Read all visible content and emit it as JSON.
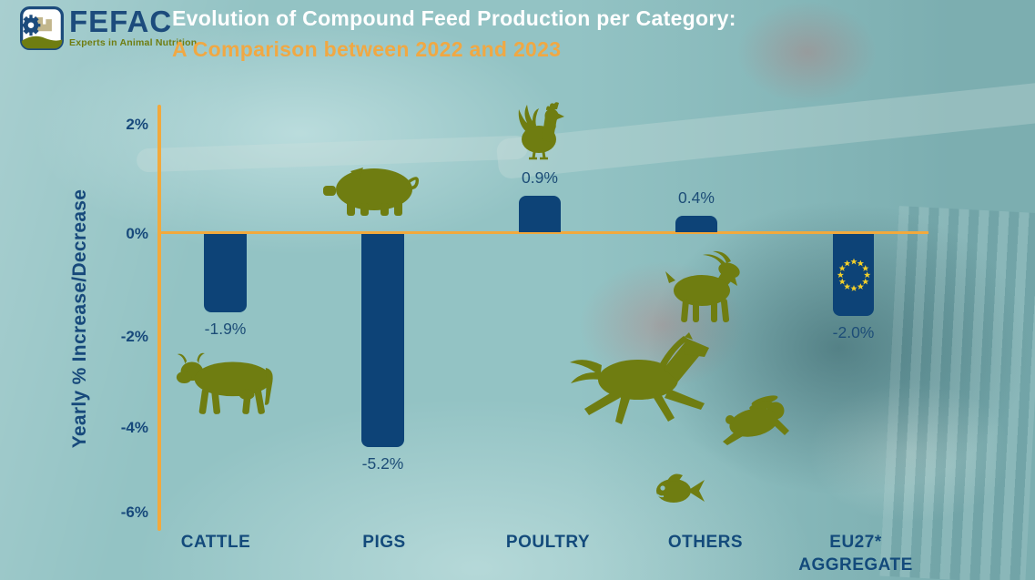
{
  "logo": {
    "brand": "FEFAC",
    "tagline": "Experts in Animal Nutrition"
  },
  "header": {
    "title_line1": "Evolution of Compound Feed Production per Category:",
    "title_line2": "A Comparison between 2022 and 2023"
  },
  "chart_data": {
    "type": "bar",
    "title": "Evolution of Compound Feed Production per Category: A Comparison between 2022 and 2023",
    "ylabel": "Yearly % Increase/Decrease",
    "categories": [
      "CATTLE",
      "PIGS",
      "POULTRY",
      "OTHERS",
      "EU27* AGGREGATE"
    ],
    "category_display": [
      "CATTLE",
      "PIGS",
      "POULTRY",
      "OTHERS",
      "EU27*\nAGGREGATE"
    ],
    "values": [
      -1.9,
      -5.2,
      0.9,
      0.4,
      -2.0
    ],
    "value_labels": [
      "-1.9%",
      "-5.2%",
      "0.9%",
      "0.4%",
      "-2.0%"
    ],
    "y_ticks": [
      {
        "label": "2%",
        "value": 2
      },
      {
        "label": "0%",
        "value": 0
      },
      {
        "label": "-2%",
        "value": -2
      },
      {
        "label": "-4%",
        "value": -4
      },
      {
        "label": "-6%",
        "value": -6
      }
    ],
    "ylim": [
      -6.5,
      2.5
    ],
    "grid": false,
    "legend": null,
    "bar_color": "#0d4377",
    "axis_color": "#f2a93c",
    "category_icons": [
      "cow-icon",
      "pig-icon",
      "chicken-icon",
      "goat-horse-rabbit-fish-icons",
      "eu-flag-stars-icon"
    ]
  },
  "colors": {
    "background_teal": "#8fc1c2",
    "navy": "#17497b",
    "bar_navy": "#0d4377",
    "orange": "#f2a93c",
    "olive": "#6f7d11",
    "white": "#ffffff",
    "star_yellow": "#f3d02a"
  }
}
